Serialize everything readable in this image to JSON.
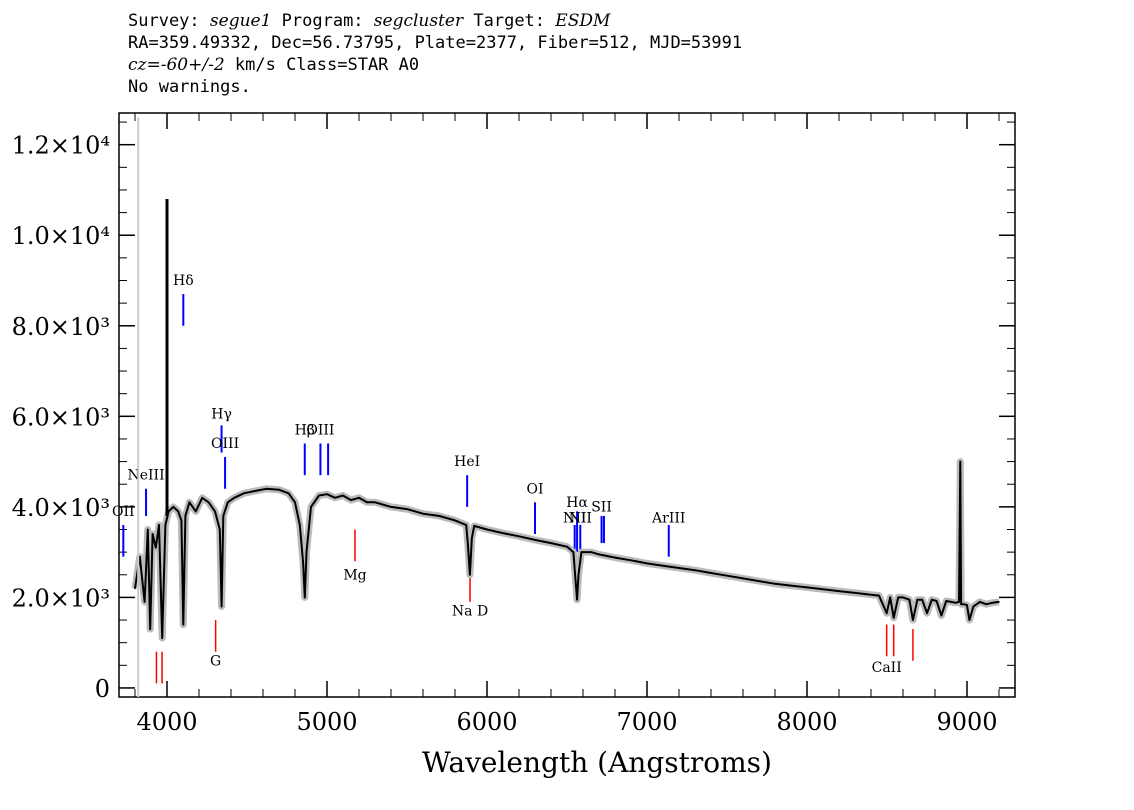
{
  "header": {
    "survey_label": "Survey:",
    "survey": "segue1",
    "program_label": "Program:",
    "program": "segcluster",
    "target_label": "Target:",
    "target": "ESDM",
    "line2": "RA=359.49332, Dec=56.73795, Plate=2377, Fiber=512, MJD=53991",
    "cz": "cz=-60+/-2",
    "line3_rest": "km/s Class=STAR A0",
    "line4": "No warnings."
  },
  "chart_data": {
    "type": "line",
    "title": "",
    "xlabel": "Wavelength (Angstroms)",
    "ylabel": "",
    "xlim": [
      3700,
      9300
    ],
    "ylim": [
      -200,
      12700
    ],
    "x_ticks": [
      4000,
      5000,
      6000,
      7000,
      8000,
      9000
    ],
    "x_tick_labels": [
      "4000",
      "5000",
      "6000",
      "7000",
      "8000",
      "9000"
    ],
    "y_ticks": [
      0,
      2000,
      4000,
      6000,
      8000,
      10000,
      12000
    ],
    "y_tick_labels": [
      "0",
      "2.0×10³",
      "4.0×10³",
      "6.0×10³",
      "8.0×10³",
      "1.0×10⁴",
      "1.2×10⁴"
    ],
    "series": [
      {
        "name": "flux",
        "color": "#000000",
        "x": [
          3800,
          3830,
          3860,
          3880,
          3895,
          3910,
          3930,
          3950,
          3970,
          3990,
          4010,
          4040,
          4070,
          4090,
          4102,
          4115,
          4140,
          4180,
          4220,
          4260,
          4300,
          4330,
          4341,
          4352,
          4380,
          4420,
          4480,
          4550,
          4620,
          4700,
          4760,
          4800,
          4830,
          4850,
          4861,
          4872,
          4900,
          4950,
          5000,
          5050,
          5100,
          5150,
          5200,
          5250,
          5300,
          5400,
          5500,
          5600,
          5700,
          5800,
          5870,
          5880,
          5893,
          5905,
          5920,
          6000,
          6100,
          6200,
          6300,
          6400,
          6500,
          6540,
          6555,
          6563,
          6572,
          6590,
          6650,
          6700,
          6800,
          6900,
          7000,
          7100,
          7200,
          7300,
          7400,
          7500,
          7600,
          7700,
          7800,
          7900,
          8000,
          8100,
          8200,
          8300,
          8400,
          8450,
          8498,
          8520,
          8542,
          8570,
          8600,
          8640,
          8662,
          8690,
          8720,
          8750,
          8780,
          8810,
          8840,
          8870,
          8900,
          8930,
          8950,
          8958,
          8963,
          8970,
          8980,
          9000,
          9015,
          9040,
          9080,
          9120,
          9160,
          9200
        ],
        "values": [
          2200,
          2900,
          1900,
          3500,
          1300,
          3400,
          3100,
          3600,
          1100,
          3600,
          3900,
          4000,
          3900,
          3700,
          1400,
          3800,
          4100,
          3900,
          4200,
          4100,
          3900,
          3500,
          1800,
          3800,
          4100,
          4200,
          4300,
          4350,
          4400,
          4380,
          4300,
          4100,
          3600,
          2800,
          2000,
          3000,
          4000,
          4250,
          4280,
          4200,
          4250,
          4150,
          4200,
          4100,
          4100,
          4000,
          3950,
          3850,
          3800,
          3700,
          3600,
          3200,
          2500,
          3300,
          3580,
          3500,
          3420,
          3350,
          3270,
          3200,
          3120,
          3000,
          2300,
          1950,
          2500,
          3000,
          3000,
          2950,
          2880,
          2820,
          2750,
          2700,
          2650,
          2600,
          2540,
          2480,
          2420,
          2360,
          2300,
          2260,
          2220,
          2180,
          2140,
          2100,
          2060,
          2040,
          1650,
          2000,
          1550,
          2000,
          2000,
          1950,
          1500,
          1950,
          1950,
          1650,
          1950,
          1920,
          1600,
          1920,
          1900,
          1880,
          1900,
          5000,
          1850,
          1850,
          1850,
          1830,
          1500,
          1800,
          1900,
          1850,
          1880,
          1900
        ]
      }
    ],
    "spikes": [
      {
        "x": 4000,
        "value": 10800
      },
      {
        "x": 3820,
        "value": 12600
      }
    ],
    "emission_lines": [
      {
        "label": "NeIII",
        "x": 3869,
        "y_bottom": 3800,
        "y_top": 4400,
        "label_y": 4600
      },
      {
        "label": "OII",
        "x": 3727,
        "y_bottom": 2900,
        "y_top": 3600,
        "label_y": 3800
      },
      {
        "label": "Hδ",
        "x": 4102,
        "y_bottom": 8000,
        "y_top": 8700,
        "label_y": 8900
      },
      {
        "label": "Hγ",
        "x": 4341,
        "y_bottom": 5200,
        "y_top": 5800,
        "label_y": 5950
      },
      {
        "label": "OIII",
        "x": 4363,
        "y_bottom": 4400,
        "y_top": 5100,
        "label_y": 5300
      },
      {
        "label": "Hβ",
        "x": 4861,
        "y_bottom": 4700,
        "y_top": 5400,
        "label_y": 5600
      },
      {
        "label": "OIII",
        "x": 4959,
        "y_bottom": 4700,
        "y_top": 5400,
        "label_y": 5600
      },
      {
        "label": "",
        "x": 5007,
        "y_bottom": 4700,
        "y_top": 5400,
        "label_y": 5600
      },
      {
        "label": "HeI",
        "x": 5876,
        "y_bottom": 4000,
        "y_top": 4700,
        "label_y": 4900
      },
      {
        "label": "OI",
        "x": 6300,
        "y_bottom": 3400,
        "y_top": 4100,
        "label_y": 4300
      },
      {
        "label": "NII",
        "x": 6548,
        "y_bottom": 3000,
        "y_top": 3600,
        "label_y": 3650
      },
      {
        "label": "Hα",
        "x": 6563,
        "y_bottom": 3000,
        "y_top": 3900,
        "label_y": 4000
      },
      {
        "label": "NII",
        "x": 6583,
        "y_bottom": 3000,
        "y_top": 3600,
        "label_y": 3650
      },
      {
        "label": "SII",
        "x": 6716,
        "y_bottom": 3200,
        "y_top": 3800,
        "label_y": 3900
      },
      {
        "label": "",
        "x": 6731,
        "y_bottom": 3200,
        "y_top": 3800,
        "label_y": 3900
      },
      {
        "label": "ArIII",
        "x": 7136,
        "y_bottom": 2900,
        "y_top": 3600,
        "label_y": 3650
      }
    ],
    "absorption_lines": [
      {
        "label": "",
        "x": 3934,
        "y_bottom": 100,
        "y_top": 800,
        "label_y": -999
      },
      {
        "label": "",
        "x": 3969,
        "y_bottom": 100,
        "y_top": 800,
        "label_y": -999
      },
      {
        "label": "G",
        "x": 4304,
        "y_bottom": 800,
        "y_top": 1500,
        "label_y": 500
      },
      {
        "label": "Mg",
        "x": 5175,
        "y_bottom": 2800,
        "y_top": 3500,
        "label_y": 2400
      },
      {
        "label": "Na D",
        "x": 5894,
        "y_bottom": 1900,
        "y_top": 2600,
        "label_y": 1600
      },
      {
        "label": "CaII",
        "x": 8498,
        "y_bottom": 700,
        "y_top": 1400,
        "label_y": 350
      },
      {
        "label": "",
        "x": 8542,
        "y_bottom": 700,
        "y_top": 1400,
        "label_y": -999
      },
      {
        "label": "",
        "x": 8662,
        "y_bottom": 600,
        "y_top": 1300,
        "label_y": -999
      }
    ]
  }
}
